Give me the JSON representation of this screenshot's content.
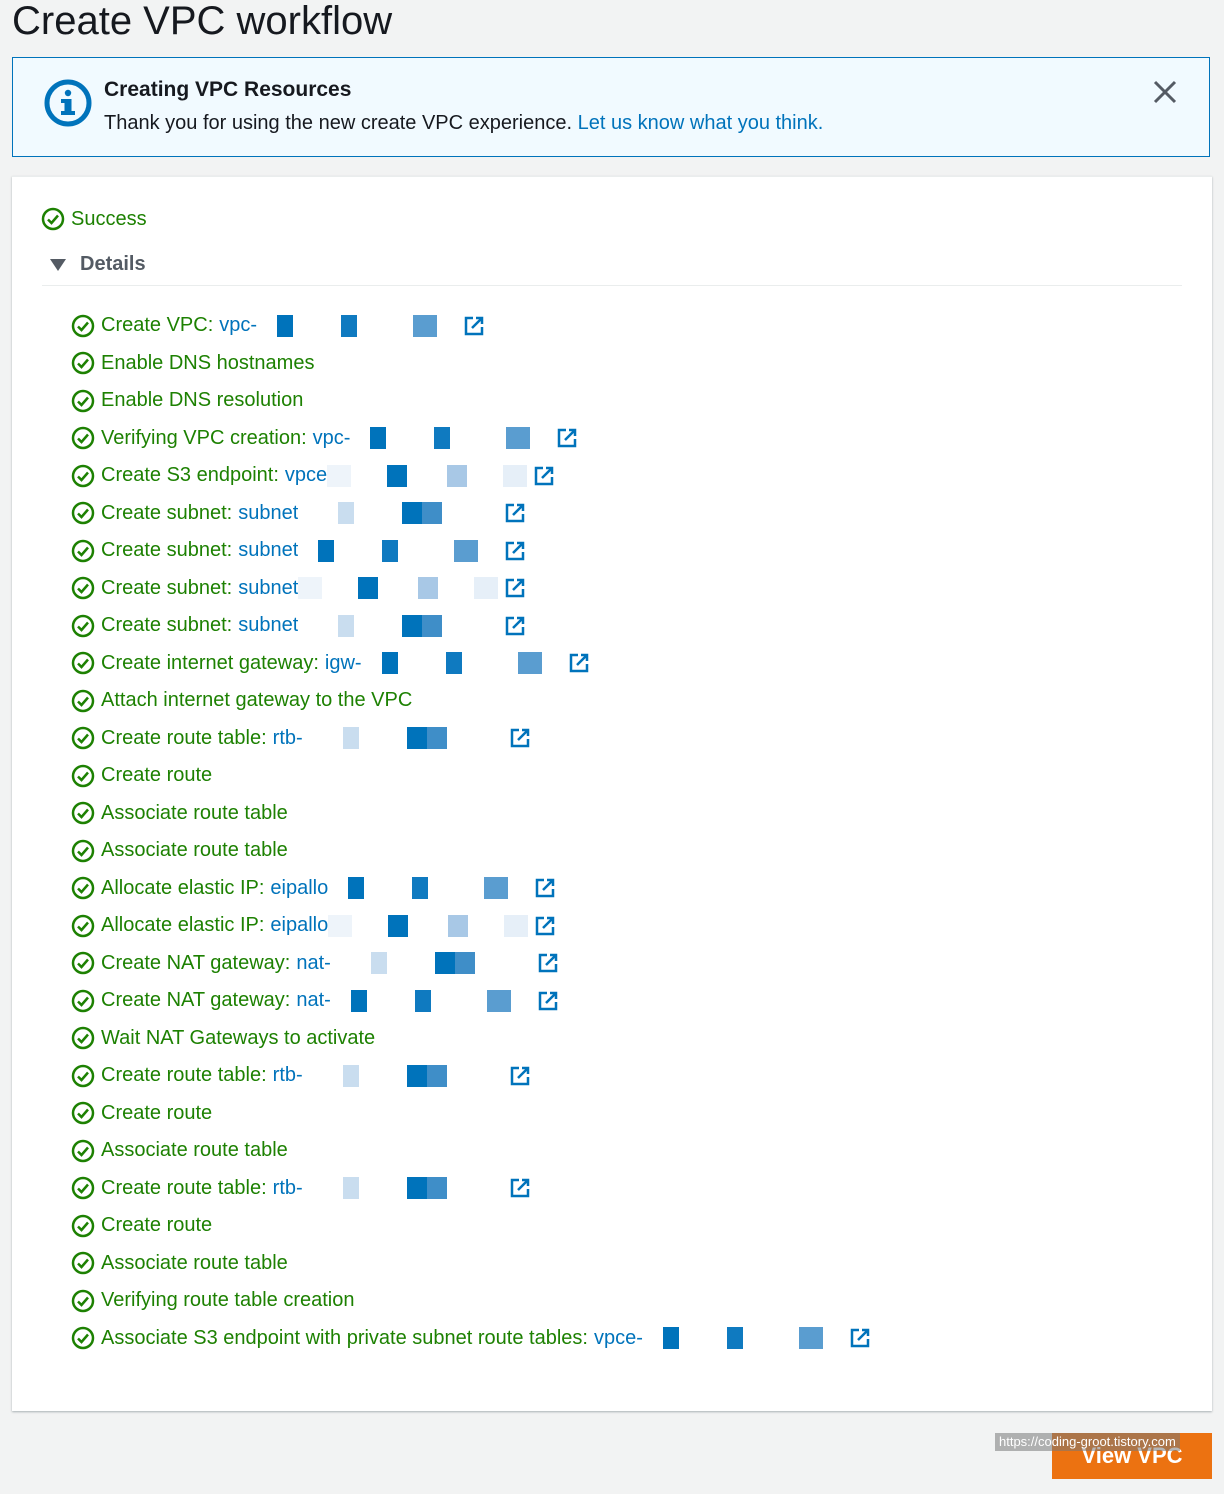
{
  "page": {
    "title": "Create VPC workflow"
  },
  "flash": {
    "title": "Creating VPC Resources",
    "message": "Thank you for using the new create VPC experience.",
    "link": "Let us know what you think."
  },
  "status": {
    "label": "Success"
  },
  "details": {
    "label": "Details"
  },
  "steps": [
    {
      "label": "Create VPC:",
      "resource": "vpc-"
    },
    {
      "label": "Enable DNS hostnames",
      "resource": ""
    },
    {
      "label": "Enable DNS resolution",
      "resource": ""
    },
    {
      "label": "Verifying VPC creation:",
      "resource": "vpc-"
    },
    {
      "label": "Create S3 endpoint:",
      "resource": "vpce"
    },
    {
      "label": "Create subnet:",
      "resource": "subnet"
    },
    {
      "label": "Create subnet:",
      "resource": "subnet"
    },
    {
      "label": "Create subnet:",
      "resource": "subnet"
    },
    {
      "label": "Create subnet:",
      "resource": "subnet"
    },
    {
      "label": "Create internet gateway:",
      "resource": "igw-"
    },
    {
      "label": "Attach internet gateway to the VPC",
      "resource": ""
    },
    {
      "label": "Create route table:",
      "resource": "rtb-"
    },
    {
      "label": "Create route",
      "resource": ""
    },
    {
      "label": "Associate route table",
      "resource": ""
    },
    {
      "label": "Associate route table",
      "resource": ""
    },
    {
      "label": "Allocate elastic IP:",
      "resource": "eipallo"
    },
    {
      "label": "Allocate elastic IP:",
      "resource": "eipallo"
    },
    {
      "label": "Create NAT gateway:",
      "resource": "nat-"
    },
    {
      "label": "Create NAT gateway:",
      "resource": "nat-"
    },
    {
      "label": "Wait NAT Gateways to activate",
      "resource": ""
    },
    {
      "label": "Create route table:",
      "resource": "rtb-"
    },
    {
      "label": "Create route",
      "resource": ""
    },
    {
      "label": "Associate route table",
      "resource": ""
    },
    {
      "label": "Create route table:",
      "resource": "rtb-"
    },
    {
      "label": "Create route",
      "resource": ""
    },
    {
      "label": "Associate route table",
      "resource": ""
    },
    {
      "label": "Verifying route table creation",
      "resource": ""
    },
    {
      "label": "Associate S3 endpoint with private subnet route tables:",
      "resource": "vpce-"
    }
  ],
  "actions": {
    "view_vpc": "View VPC"
  },
  "watermark": "https://coding-groot.tistory.com",
  "colors": {
    "success": "#1d8102",
    "link": "#0073bb",
    "primary_button": "#ec7211",
    "info_bg": "#f1faff"
  }
}
